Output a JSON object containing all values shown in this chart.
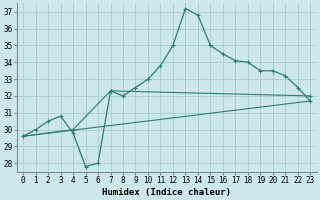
{
  "xlabel": "Humidex (Indice chaleur)",
  "xlim": [
    -0.5,
    23.5
  ],
  "ylim": [
    27.5,
    37.5
  ],
  "yticks": [
    28,
    29,
    30,
    31,
    32,
    33,
    34,
    35,
    36,
    37
  ],
  "xticks": [
    0,
    1,
    2,
    3,
    4,
    5,
    6,
    7,
    8,
    9,
    10,
    11,
    12,
    13,
    14,
    15,
    16,
    17,
    18,
    19,
    20,
    21,
    22,
    23
  ],
  "bg_color": "#cce8e8",
  "line_color": "#2e7d74",
  "grid_color": "#b8d8d8",
  "line1_x": [
    0,
    1,
    2,
    3,
    4,
    5,
    6,
    7,
    8,
    9,
    10,
    11,
    12,
    13,
    14,
    15,
    16,
    17,
    18,
    19,
    20,
    21,
    22,
    23
  ],
  "line1_y": [
    29.6,
    30.0,
    30.5,
    30.8,
    29.8,
    27.8,
    28.0,
    32.3,
    32.0,
    32.5,
    33.0,
    33.8,
    35.0,
    37.2,
    36.8,
    35.0,
    34.5,
    34.1,
    34.0,
    33.5,
    33.5,
    33.2,
    32.5,
    31.7
  ],
  "line2_x": [
    0,
    4,
    7,
    23
  ],
  "line2_y": [
    29.6,
    30.0,
    32.3,
    32.0
  ],
  "line3_x": [
    0,
    23
  ],
  "line3_y": [
    29.6,
    31.7
  ]
}
